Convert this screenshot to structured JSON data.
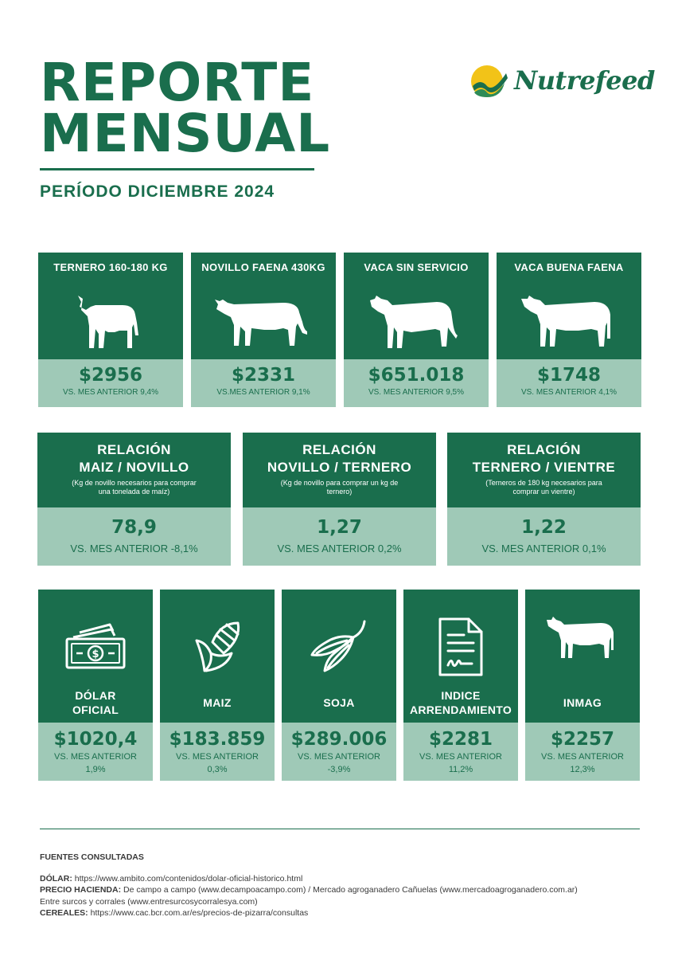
{
  "header": {
    "title_line1": "REPORTE",
    "title_line2": "MENSUAL",
    "period": "PERÍODO DICIEMBRE 2024",
    "logo_text": "Nutrefeed",
    "logo_icon": "sun-check-logo"
  },
  "cattle": [
    {
      "label": "TERNERO 160-180 KG",
      "value": "$2956",
      "compare": "VS. MES ANTERIOR 9,4%",
      "icon": "calf-icon"
    },
    {
      "label": "NOVILLO FAENA 430KG",
      "value": "$2331",
      "compare": "VS.MES ANTERIOR 9,1%",
      "icon": "steer-icon"
    },
    {
      "label": "VACA SIN SERVICIO",
      "value": "$651.018",
      "compare": "VS. MES ANTERIOR 9,5%",
      "icon": "cow-icon"
    },
    {
      "label": "VACA BUENA FAENA",
      "value": "$1748",
      "compare": "VS. MES ANTERIOR 4,1%",
      "icon": "cow-icon"
    }
  ],
  "ratios": [
    {
      "line1": "RELACIÓN",
      "line2": "MAIZ / NOVILLO",
      "sub": "(Kg de novillo necesarios para comprar una tonelada de maíz)",
      "value": "78,9",
      "compare": "VS. MES ANTERIOR -8,1%"
    },
    {
      "line1": "RELACIÓN",
      "line2": "NOVILLO / TERNERO",
      "sub": "(Kg de novillo para comprar un kg de ternero)",
      "value": "1,27",
      "compare": "VS. MES ANTERIOR 0,2%"
    },
    {
      "line1": "RELACIÓN",
      "line2": "TERNERO / VIENTRE",
      "sub": "(Terneros de 180 kg necesarios para comprar un vientre)",
      "value": "1,22",
      "compare": "VS. MES ANTERIOR 0,1%"
    }
  ],
  "markets": [
    {
      "label_line1": "DÓLAR",
      "label_line2": "OFICIAL",
      "value": "$1020,4",
      "compare_line1": "VS. MES ANTERIOR",
      "compare_line2": "1,9%",
      "icon": "banknote-icon"
    },
    {
      "label_line1": "MAIZ",
      "label_line2": "",
      "value": "$183.859",
      "compare_line1": "VS. MES ANTERIOR",
      "compare_line2": "0,3%",
      "icon": "corn-icon"
    },
    {
      "label_line1": "SOJA",
      "label_line2": "",
      "value": "$289.006",
      "compare_line1": "VS. MES ANTERIOR",
      "compare_line2": "-3,9%",
      "icon": "soy-pod-icon"
    },
    {
      "label_line1": "INDICE",
      "label_line2": "ARRENDAMIENTO",
      "value": "$2281",
      "compare_line1": "VS. MES ANTERIOR",
      "compare_line2": "11,2%",
      "icon": "contract-document-icon"
    },
    {
      "label_line1": "INMAG",
      "label_line2": "",
      "value": "$2257",
      "compare_line1": "VS. MES ANTERIOR",
      "compare_line2": "12,3%",
      "icon": "cow-icon"
    }
  ],
  "sources": {
    "title": "FUENTES CONSULTADAS",
    "dolar_label": "DÓLAR:",
    "dolar_text": " https://www.ambito.com/contenidos/dolar-oficial-historico.html",
    "hacienda_label": "PRECIO HACIENDA:",
    "hacienda_text": " De campo a campo (www.decampoacampo.com) / Mercado agroganadero Cañuelas (www.mercadoagroganadero.com.ar)",
    "hacienda_text2": "Entre surcos y corrales (www.entresurcosycorralesya.com)",
    "cereales_label": "CEREALES:",
    "cereales_text": " https://www.cac.bcr.com.ar/es/precios-de-pizarra/consultas"
  },
  "colors": {
    "dark_green": "#1a6e4d",
    "light_green": "#9fc9b7",
    "logo_yellow": "#f2c318"
  }
}
